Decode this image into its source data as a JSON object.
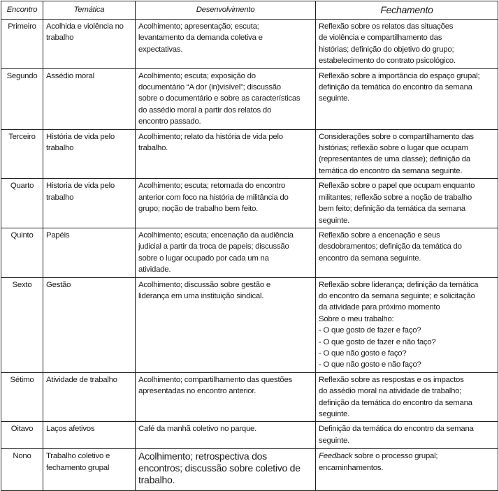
{
  "headers": [
    "Encontro",
    "Temática",
    "Desenvolvimento",
    "Fechamento"
  ],
  "rows": [
    {
      "encontro": "Primeiro",
      "tematica": "Acolhida e violência no\ntrabalho",
      "desenvolvimento": "Acolhimento; apresentação; escuta;\nlevantamento da demanda coletiva e\nexpectativas.",
      "fechamento": "Reflexão sobre os relatos das situações\nde violência e compartilhamento das\nhistórias; definição do objetivo do grupo;\nestabelecimento do contrato psicológico."
    },
    {
      "encontro": "Segundo",
      "tematica": "Assédio moral",
      "desenvolvimento": "Acolhimento; escuta; exposição do\ndocumentário “A dor (in)visível”; discussão\nsobre o documentário e sobre as características\ndo assédio moral a partir dos relatos do\nencontro passado.",
      "fechamento": "Reflexão sobre a importância do espaço grupal;\ndefinição da temática do encontro da semana\nseguinte."
    },
    {
      "encontro": "Terceiro",
      "tematica": "História de vida pelo\ntrabalho",
      "desenvolvimento": "Acolhimento; relato da história de vida pelo\ntrabalho.",
      "fechamento": "Considerações sobre o compartilhamento das\nhistórias; reflexão sobre o lugar que ocupam\n(representantes de uma classe); definição da\ntemática do encontro da semana seguinte."
    },
    {
      "encontro": "Quarto",
      "tematica": "Historia de vida pelo\ntrabalho",
      "desenvolvimento": "Acolhimento; escuta; retomada do encontro\nanterior com foco na história de militância do\ngrupo; noção de trabalho bem feito.",
      "fechamento": "Reflexão sobre o papel que ocupam enquanto\nmilitantes; reflexão sobre a noção de trabalho\nbem feito; definição da temática da semana\nseguinte."
    },
    {
      "encontro": "Quinto",
      "tematica": "Papéis",
      "desenvolvimento": "Acolhimento; escuta; encenação da audiência\njudicial a partir da troca de papeis; discussão\nsobre o lugar ocupado por cada um na\natividade.",
      "fechamento": "Reflexão sobre a encenação e seus\ndesdobramentos; definição da temática do\nencontro da semana seguinte."
    },
    {
      "encontro": "Sexto",
      "tematica": "Gestão",
      "desenvolvimento": "Acolhimento; discussão sobre gestão e\nliderança em uma instituição sindical.",
      "fechamento": "Reflexão sobre liderança; definição da temática\ndo encontro da semana seguinte; e solicitação\nda atividade para próximo momento\nSobre o meu trabalho:\n- O que gosto de fazer e faço?\n- O que gosto de fazer e não faço?\n- O que não gosto e faço?\n- O que não gosto e não faço?"
    },
    {
      "encontro": "Sétimo",
      "tematica": "Atividade de trabalho",
      "desenvolvimento": "Acolhimento; compartilhamento das questões\napresentadas no encontro anterior.",
      "fechamento": "Reflexão sobre as respostas e os impactos\ndo assédio moral na atividade de trabalho;\ndefinição da temática do encontro da semana\nseguinte."
    },
    {
      "encontro": "Oitavo",
      "tematica": "Laços afetivos",
      "desenvolvimento": "Café da manhã coletivo no parque.",
      "fechamento": "Definição da temática do encontro da semana\nseguinte."
    },
    {
      "encontro": "Nono",
      "tematica": "Trabalho coletivo e\nfechamento grupal",
      "desenvolvimento": "Acolhimento; retrospectiva dos\nencontros; discussão sobre coletivo de\ntrabalho.",
      "fechamento_italic": "Feedback",
      "fechamento": " sobre o processo grupal;\nencaminhamentos."
    }
  ]
}
